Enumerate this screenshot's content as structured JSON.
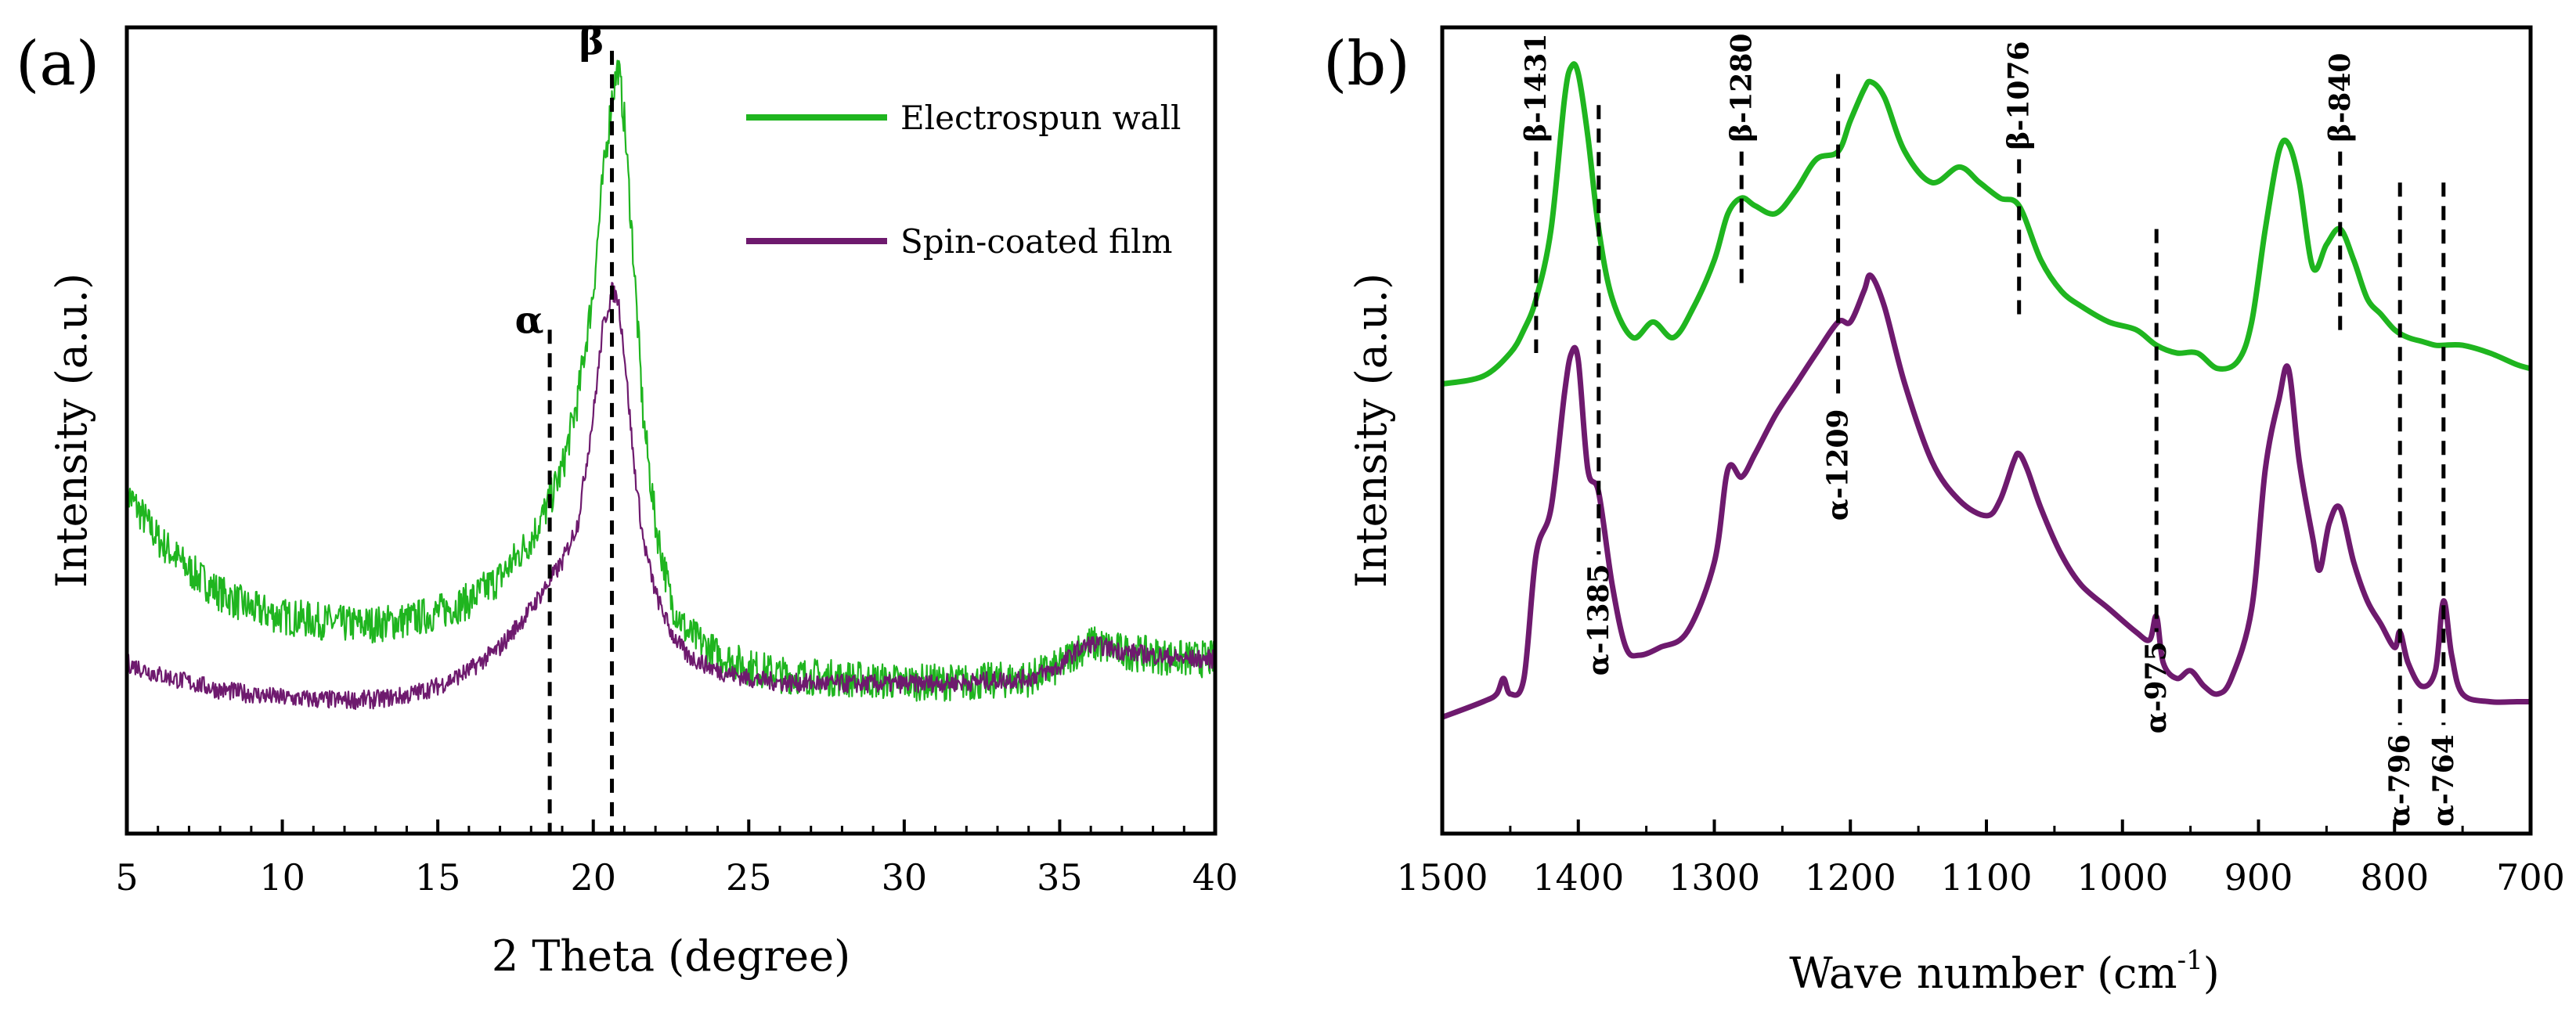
{
  "chart_data": [
    {
      "panel_label": "(a)",
      "type": "line",
      "title": "",
      "xlabel": "2 Theta (degree)",
      "ylabel": "Intensity (a.u.)",
      "xlim": [
        5,
        40
      ],
      "ylim": [
        0,
        100
      ],
      "xticks": [
        "5",
        "10",
        "15",
        "20",
        "25",
        "30",
        "35",
        "40"
      ],
      "legend_position": "top-right",
      "series": [
        {
          "name": "Electrospun wall",
          "color": "#1fb51f",
          "x": [
            5,
            6,
            7,
            8,
            9,
            10,
            11,
            12,
            13,
            14,
            15,
            16,
            17,
            18,
            18.5,
            19,
            19.5,
            20,
            20.3,
            20.6,
            20.8,
            21,
            21.3,
            21.6,
            22,
            22.5,
            23,
            24,
            25,
            26,
            28,
            30,
            32,
            34,
            35,
            35.5,
            36,
            36.5,
            37,
            38,
            39,
            40
          ],
          "values": [
            42,
            36,
            32,
            29,
            27,
            26,
            25.5,
            25,
            25,
            25.5,
            26.5,
            28,
            31,
            36,
            40,
            45,
            54,
            68,
            82,
            93,
            97,
            90,
            72,
            52,
            38,
            28,
            24,
            21,
            19.5,
            18.5,
            18,
            17.5,
            17.5,
            18,
            19.5,
            21.5,
            22.5,
            22,
            21.5,
            21,
            20.5,
            20.5
          ],
          "noise": 2.4
        },
        {
          "name": "Spin-coated film",
          "color": "#6e1a6e",
          "x": [
            5,
            6,
            7,
            8,
            9,
            10,
            11,
            12,
            13,
            14,
            15,
            16,
            17,
            18,
            18.5,
            19,
            19.5,
            20,
            20.3,
            20.6,
            20.8,
            21,
            21.3,
            21.6,
            22,
            22.5,
            23,
            24,
            25,
            26,
            28,
            30,
            32,
            34,
            35,
            35.5,
            36,
            36.5,
            37,
            38,
            39,
            40
          ],
          "values": [
            20,
            18.5,
            17.5,
            16.5,
            16,
            15.5,
            15.3,
            15.2,
            15.3,
            15.8,
            17,
            19,
            22,
            27,
            30,
            33,
            38,
            52,
            63,
            68,
            67,
            60,
            46,
            36,
            29,
            24,
            21,
            19,
            18,
            17.5,
            17.3,
            17.3,
            17.5,
            18,
            19.5,
            21.5,
            22.5,
            22,
            21.5,
            21,
            20.5,
            20.5
          ],
          "noise": 1.2
        }
      ],
      "annotations": [
        {
          "text": "α",
          "x": 18.6,
          "y_top": 63
        },
        {
          "text": "β",
          "x": 20.6,
          "y_top": 99
        }
      ]
    },
    {
      "panel_label": "(b)",
      "type": "line",
      "title": "",
      "xlabel": "Wave number (cm",
      "xlabel_superscript": "-1",
      "xlabel_suffix": ")",
      "ylabel": "Intensity (a.u.)",
      "xlim": [
        1500,
        700
      ],
      "ylim": [
        0,
        100
      ],
      "xticks": [
        "1500",
        "1400",
        "1300",
        "1200",
        "1100",
        "1000",
        "900",
        "800",
        "700"
      ],
      "series": [
        {
          "name": "Electrospun wall",
          "color": "#1fb51f",
          "x": [
            1500,
            1470,
            1450,
            1440,
            1431,
            1420,
            1410,
            1405,
            1400,
            1393,
            1385,
            1375,
            1360,
            1345,
            1330,
            1315,
            1300,
            1290,
            1280,
            1270,
            1255,
            1240,
            1225,
            1209,
            1200,
            1190,
            1185,
            1175,
            1160,
            1140,
            1120,
            1105,
            1090,
            1076,
            1060,
            1045,
            1030,
            1010,
            990,
            975,
            960,
            945,
            930,
            915,
            905,
            895,
            885,
            878,
            870,
            860,
            850,
            840,
            830,
            820,
            810,
            800,
            790,
            780,
            770,
            764,
            750,
            730,
            710,
            700
          ],
          "values": [
            56,
            57,
            60,
            63,
            67,
            76,
            93,
            97,
            96,
            88,
            76,
            67,
            62,
            64,
            62,
            66,
            72,
            78,
            80,
            79,
            78,
            81,
            85,
            86,
            90,
            94,
            95,
            93,
            86,
            82,
            84,
            82,
            80,
            79,
            72,
            68,
            66,
            64,
            63,
            61,
            60,
            60,
            58,
            59,
            64,
            76,
            86,
            87,
            82,
            71,
            74,
            76,
            72,
            67,
            65,
            63,
            62,
            61.5,
            61,
            61,
            61,
            60,
            58.5,
            58
          ]
        },
        {
          "name": "Spin-coated film",
          "color": "#6e1a6e",
          "x": [
            1500,
            1470,
            1460,
            1455,
            1450,
            1440,
            1431,
            1420,
            1410,
            1405,
            1400,
            1393,
            1385,
            1375,
            1365,
            1355,
            1340,
            1320,
            1300,
            1290,
            1280,
            1270,
            1255,
            1240,
            1225,
            1209,
            1200,
            1190,
            1185,
            1175,
            1160,
            1140,
            1120,
            1100,
            1090,
            1080,
            1076,
            1070,
            1060,
            1045,
            1030,
            1010,
            990,
            980,
            975,
            970,
            960,
            950,
            940,
            930,
            920,
            905,
            895,
            885,
            878,
            870,
            860,
            855,
            848,
            840,
            830,
            820,
            810,
            800,
            796,
            790,
            780,
            770,
            764,
            758,
            750,
            730,
            710,
            700
          ],
          "values": [
            13,
            15,
            16,
            18,
            16,
            18,
            34,
            40,
            55,
            60,
            59,
            45,
            42,
            30,
            22,
            21,
            22,
            24,
            33,
            45,
            44,
            47,
            52,
            56,
            60,
            64,
            64,
            68,
            70,
            66,
            56,
            46,
            41,
            39,
            41,
            46,
            47,
            45,
            40,
            34,
            30,
            27,
            24,
            23,
            26,
            20,
            18,
            19,
            17,
            16,
            18,
            27,
            45,
            54,
            58,
            46,
            36,
            32,
            38,
            40,
            33,
            28,
            25,
            22,
            24,
            20,
            17,
            19,
            28,
            21,
            16,
            15,
            15,
            15
          ]
        }
      ],
      "annotations": [
        {
          "text": "β-1431",
          "x": 1431,
          "y_top": 86,
          "y_bottom": 60,
          "side": "above"
        },
        {
          "text": "α-1385",
          "x": 1385,
          "y_top": 92,
          "y_bottom": 34,
          "side": "below"
        },
        {
          "text": "β-1280",
          "x": 1280,
          "y_top": 86,
          "y_bottom": 68,
          "side": "above"
        },
        {
          "text": "α-1209",
          "x": 1209,
          "y_top": 96,
          "y_bottom": 54,
          "side": "below"
        },
        {
          "text": "β-1076",
          "x": 1076,
          "y_top": 85,
          "y_bottom": 64,
          "side": "above"
        },
        {
          "text": "α-975",
          "x": 975,
          "y_top": 76,
          "y_bottom": 24,
          "side": "below"
        },
        {
          "text": "β-840",
          "x": 840,
          "y_top": 86,
          "y_bottom": 62,
          "side": "above"
        },
        {
          "text": "α-796",
          "x": 796,
          "y_top": 82,
          "y_bottom": 12,
          "side": "below"
        },
        {
          "text": "α-764",
          "x": 764,
          "y_top": 82,
          "y_bottom": 12,
          "side": "below"
        }
      ]
    }
  ]
}
